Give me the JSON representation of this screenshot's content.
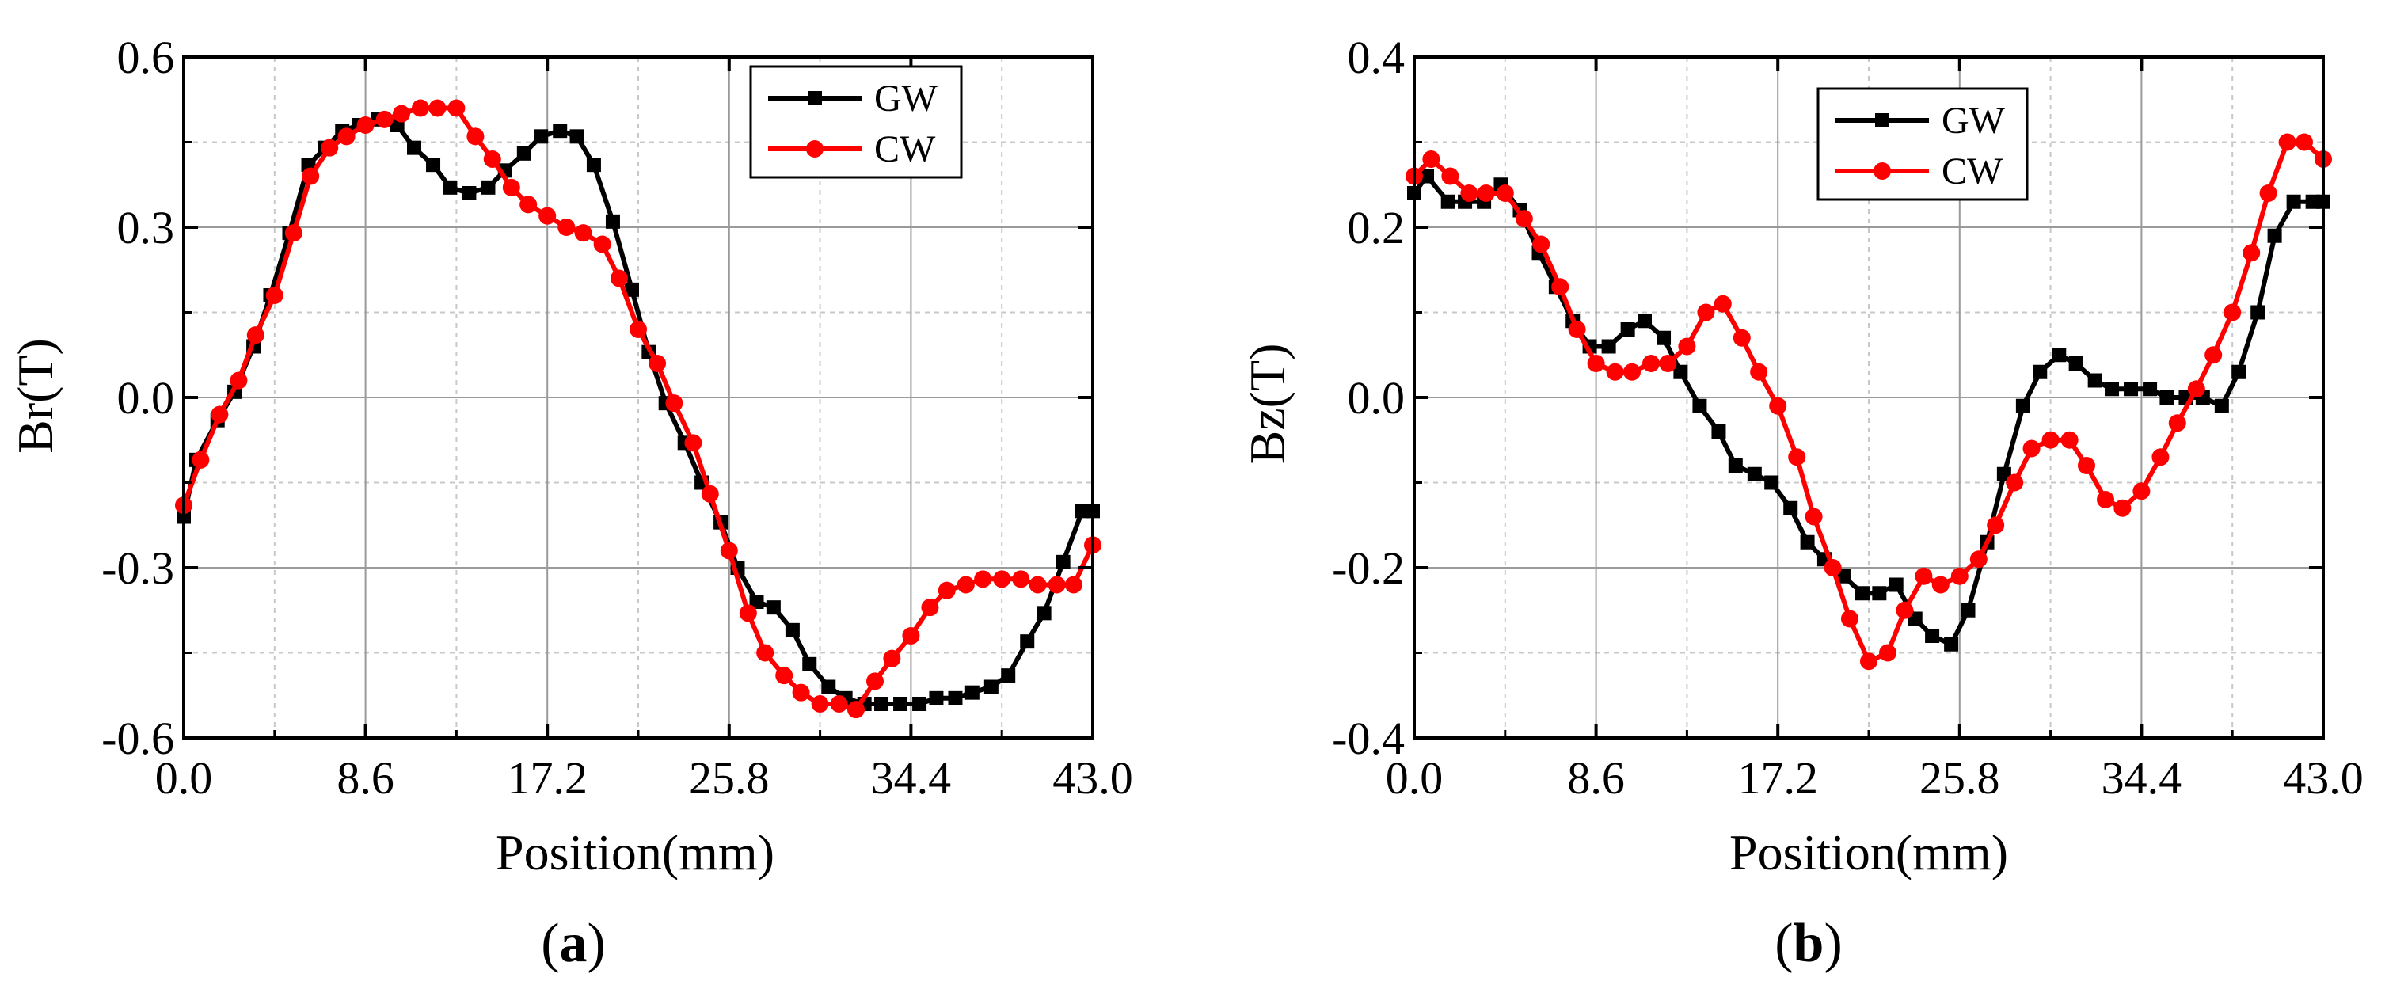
{
  "chart_data": [
    {
      "id": "a",
      "type": "line",
      "caption": "a",
      "xlabel": "Position(mm)",
      "ylabel": "Br(T)",
      "xlim": [
        0,
        43
      ],
      "ylim": [
        -0.6,
        0.6
      ],
      "x_ticks": [
        0.0,
        8.6,
        17.2,
        25.8,
        34.4,
        43.0
      ],
      "x_tick_labels": [
        "0.0",
        "8.6",
        "17.2",
        "25.8",
        "34.4",
        "43.0"
      ],
      "y_ticks": [
        0.6,
        0.3,
        0.0,
        -0.3,
        -0.6
      ],
      "y_tick_labels": [
        "0.6",
        "0.3",
        "0.0",
        "-0.3",
        "-0.6"
      ],
      "legend_position": "top-right",
      "series": [
        {
          "name": "GW",
          "color": "#000000",
          "marker": "square",
          "x": [
            0.0,
            0.6,
            1.6,
            2.4,
            3.3,
            4.1,
            5.0,
            5.9,
            6.7,
            7.5,
            8.3,
            9.2,
            10.1,
            10.9,
            11.8,
            12.6,
            13.5,
            14.4,
            15.2,
            16.1,
            16.9,
            17.8,
            18.6,
            19.4,
            20.3,
            21.2,
            22.0,
            22.8,
            23.7,
            24.5,
            25.4,
            26.2,
            27.1,
            27.9,
            28.8,
            29.6,
            30.5,
            31.3,
            32.2,
            33.0,
            33.9,
            34.8,
            35.6,
            36.5,
            37.3,
            38.2,
            39.0,
            39.9,
            40.7,
            41.6,
            42.5,
            43.0
          ],
          "values": [
            -0.21,
            -0.11,
            -0.04,
            0.01,
            0.09,
            0.18,
            0.29,
            0.41,
            0.44,
            0.47,
            0.48,
            0.49,
            0.48,
            0.44,
            0.41,
            0.37,
            0.36,
            0.37,
            0.4,
            0.43,
            0.46,
            0.47,
            0.46,
            0.41,
            0.31,
            0.19,
            0.08,
            -0.01,
            -0.08,
            -0.15,
            -0.22,
            -0.3,
            -0.36,
            -0.37,
            -0.41,
            -0.47,
            -0.51,
            -0.53,
            -0.54,
            -0.54,
            -0.54,
            -0.54,
            -0.53,
            -0.53,
            -0.52,
            -0.51,
            -0.49,
            -0.43,
            -0.38,
            -0.29,
            -0.2,
            -0.2
          ]
        },
        {
          "name": "CW",
          "color": "#ff0000",
          "marker": "circle",
          "x": [
            0.0,
            0.8,
            1.7,
            2.6,
            3.4,
            4.3,
            5.2,
            6.0,
            6.9,
            7.7,
            8.6,
            9.5,
            10.3,
            11.2,
            12.0,
            12.9,
            13.8,
            14.6,
            15.5,
            16.3,
            17.2,
            18.1,
            18.9,
            19.8,
            20.6,
            21.5,
            22.4,
            23.2,
            24.1,
            24.9,
            25.8,
            26.7,
            27.5,
            28.4,
            29.2,
            30.1,
            31.0,
            31.8,
            32.7,
            33.5,
            34.4,
            35.3,
            36.1,
            37.0,
            37.8,
            38.7,
            39.6,
            40.4,
            41.3,
            42.1,
            43.0
          ],
          "values": [
            -0.19,
            -0.11,
            -0.03,
            0.03,
            0.11,
            0.18,
            0.29,
            0.39,
            0.44,
            0.46,
            0.48,
            0.49,
            0.5,
            0.51,
            0.51,
            0.51,
            0.46,
            0.42,
            0.37,
            0.34,
            0.32,
            0.3,
            0.29,
            0.27,
            0.21,
            0.12,
            0.06,
            -0.01,
            -0.08,
            -0.17,
            -0.27,
            -0.38,
            -0.45,
            -0.49,
            -0.52,
            -0.54,
            -0.54,
            -0.55,
            -0.5,
            -0.46,
            -0.42,
            -0.37,
            -0.34,
            -0.33,
            -0.32,
            -0.32,
            -0.32,
            -0.33,
            -0.33,
            -0.33,
            -0.26
          ]
        }
      ]
    },
    {
      "id": "b",
      "type": "line",
      "caption": "b",
      "xlabel": "Position(mm)",
      "ylabel": "Bz(T)",
      "xlim": [
        0,
        43
      ],
      "ylim": [
        -0.4,
        0.4
      ],
      "x_ticks": [
        0.0,
        8.6,
        17.2,
        25.8,
        34.4,
        43.0
      ],
      "x_tick_labels": [
        "0.0",
        "8.6",
        "17.2",
        "25.8",
        "34.4",
        "43.0"
      ],
      "y_ticks": [
        0.4,
        0.2,
        0.0,
        -0.2,
        -0.4
      ],
      "y_tick_labels": [
        "0.4",
        "0.2",
        "0.0",
        "-0.2",
        "-0.4"
      ],
      "legend_position": "top-right",
      "series": [
        {
          "name": "GW",
          "color": "#000000",
          "marker": "square",
          "x": [
            0.0,
            0.6,
            1.6,
            2.4,
            3.3,
            4.1,
            5.0,
            5.9,
            6.7,
            7.5,
            8.3,
            9.2,
            10.1,
            10.9,
            11.8,
            12.6,
            13.5,
            14.4,
            15.2,
            16.1,
            16.9,
            17.8,
            18.6,
            19.4,
            20.3,
            21.2,
            22.0,
            22.8,
            23.7,
            24.5,
            25.4,
            26.2,
            27.1,
            27.9,
            28.8,
            29.6,
            30.5,
            31.3,
            32.2,
            33.0,
            33.9,
            34.8,
            35.6,
            36.5,
            37.3,
            38.2,
            39.0,
            39.9,
            40.7,
            41.6,
            42.5,
            43.0
          ],
          "values": [
            0.24,
            0.26,
            0.23,
            0.23,
            0.23,
            0.25,
            0.22,
            0.17,
            0.13,
            0.09,
            0.06,
            0.06,
            0.08,
            0.09,
            0.07,
            0.03,
            -0.01,
            -0.04,
            -0.08,
            -0.09,
            -0.1,
            -0.13,
            -0.17,
            -0.19,
            -0.21,
            -0.23,
            -0.23,
            -0.22,
            -0.26,
            -0.28,
            -0.29,
            -0.25,
            -0.17,
            -0.09,
            -0.01,
            0.03,
            0.05,
            0.04,
            0.02,
            0.01,
            0.01,
            0.01,
            0.0,
            0.0,
            0.0,
            -0.01,
            0.03,
            0.1,
            0.19,
            0.23,
            0.23,
            0.23
          ]
        },
        {
          "name": "CW",
          "color": "#ff0000",
          "marker": "circle",
          "x": [
            0.0,
            0.8,
            1.7,
            2.6,
            3.4,
            4.3,
            5.2,
            6.0,
            6.9,
            7.7,
            8.6,
            9.5,
            10.3,
            11.2,
            12.0,
            12.9,
            13.8,
            14.6,
            15.5,
            16.3,
            17.2,
            18.1,
            18.9,
            19.8,
            20.6,
            21.5,
            22.4,
            23.2,
            24.1,
            24.9,
            25.8,
            26.7,
            27.5,
            28.4,
            29.2,
            30.1,
            31.0,
            31.8,
            32.7,
            33.5,
            34.4,
            35.3,
            36.1,
            37.0,
            37.8,
            38.7,
            39.6,
            40.4,
            41.3,
            42.1,
            43.0
          ],
          "values": [
            0.26,
            0.28,
            0.26,
            0.24,
            0.24,
            0.24,
            0.21,
            0.18,
            0.13,
            0.08,
            0.04,
            0.03,
            0.03,
            0.04,
            0.04,
            0.06,
            0.1,
            0.11,
            0.07,
            0.03,
            -0.01,
            -0.07,
            -0.14,
            -0.2,
            -0.26,
            -0.31,
            -0.3,
            -0.25,
            -0.21,
            -0.22,
            -0.21,
            -0.19,
            -0.15,
            -0.1,
            -0.06,
            -0.05,
            -0.05,
            -0.08,
            -0.12,
            -0.13,
            -0.11,
            -0.07,
            -0.03,
            0.01,
            0.05,
            0.1,
            0.17,
            0.24,
            0.3,
            0.3,
            0.28
          ]
        }
      ]
    }
  ]
}
